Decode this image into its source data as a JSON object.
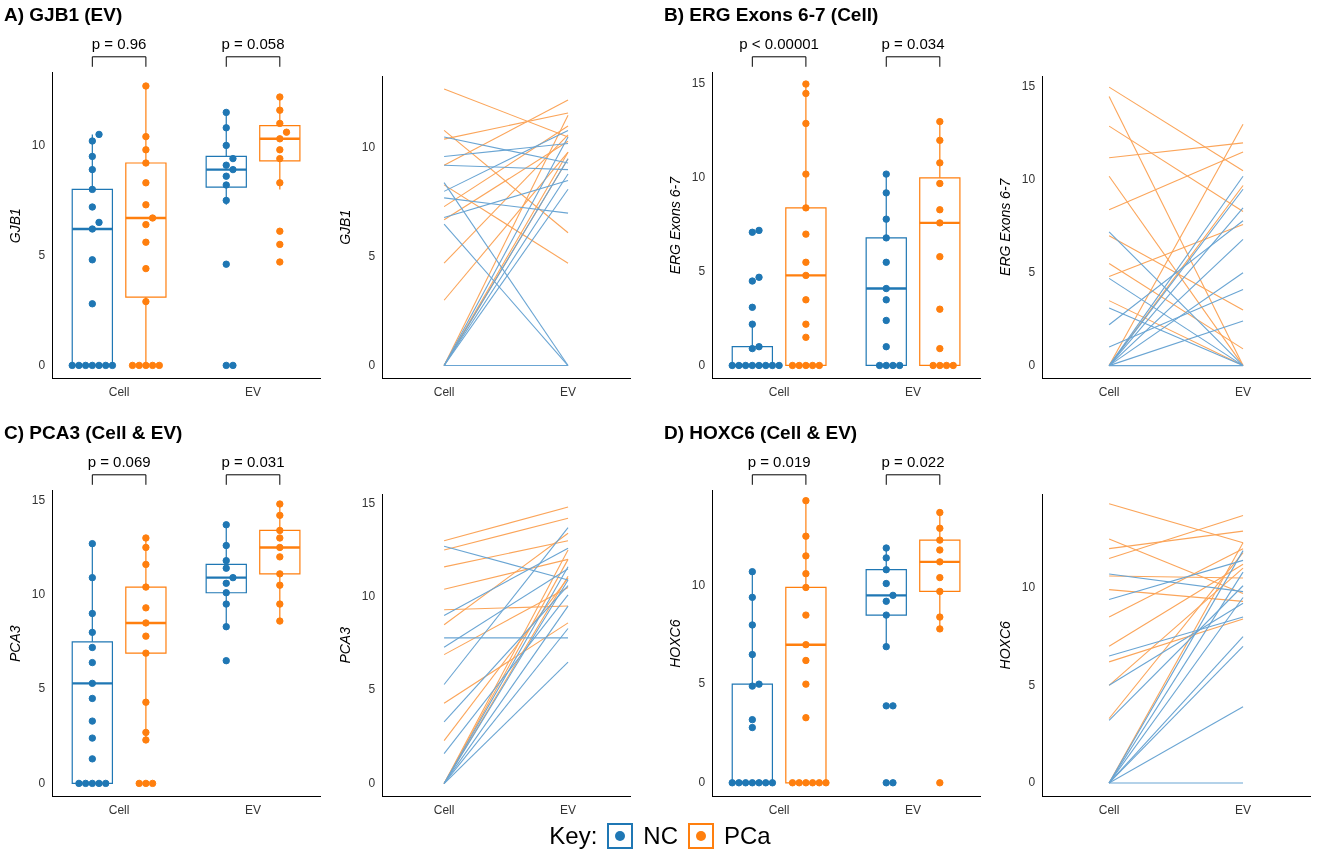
{
  "chart_data": [
    {
      "type": "box",
      "title": "A) GJB1 (EV)",
      "ylabel": "GJB1",
      "categories": [
        "Cell",
        "EV"
      ],
      "ylim": [
        -0.6,
        13.3
      ],
      "yticks": [
        0,
        5,
        10
      ],
      "marker": "circle",
      "annotations": [
        "p = 0.96",
        "p = 0.058"
      ],
      "series": [
        {
          "color": "#1f77b4",
          "boxes": [
            {
              "low": 0,
              "q1": 0,
              "median": 6.2,
              "q3": 8.0,
              "high": 10.5
            },
            {
              "low": 7.3,
              "q1": 8.1,
              "median": 8.9,
              "q3": 9.5,
              "high": 11.5
            }
          ]
        },
        {
          "color": "#ff7f0e",
          "boxes": [
            {
              "low": 0,
              "q1": 3.1,
              "median": 6.7,
              "q3": 9.2,
              "high": 12.7
            },
            {
              "low": 8.0,
              "q1": 9.3,
              "median": 10.3,
              "q3": 10.9,
              "high": 12.2
            }
          ]
        },
        {
          "type": "scatter",
          "color": "#1f77b4",
          "x": [
            "Cell",
            "Cell",
            "Cell",
            "Cell",
            "Cell",
            "Cell",
            "Cell",
            "Cell",
            "Cell",
            "Cell",
            "Cell",
            "Cell",
            "Cell",
            "Cell",
            "Cell",
            "Cell",
            "Cell",
            "EV",
            "EV",
            "EV",
            "EV",
            "EV",
            "EV",
            "EV",
            "EV",
            "EV",
            "EV",
            "EV",
            "EV"
          ],
          "values": [
            0,
            0,
            0,
            0,
            0,
            0,
            0,
            2.8,
            4.8,
            6.2,
            6.5,
            7.2,
            8.0,
            8.9,
            9.5,
            10.2,
            10.5,
            0,
            0,
            4.6,
            7.5,
            8.2,
            8.6,
            8.9,
            9.1,
            9.4,
            10.0,
            10.8,
            11.5
          ]
        },
        {
          "type": "scatter",
          "color": "#ff7f0e",
          "x": [
            "Cell",
            "Cell",
            "Cell",
            "Cell",
            "Cell",
            "Cell",
            "Cell",
            "Cell",
            "Cell",
            "Cell",
            "Cell",
            "Cell",
            "Cell",
            "Cell",
            "Cell",
            "Cell",
            "EV",
            "EV",
            "EV",
            "EV",
            "EV",
            "EV",
            "EV",
            "EV",
            "EV",
            "EV",
            "EV"
          ],
          "values": [
            0,
            0,
            0,
            0,
            0,
            2.9,
            4.4,
            5.6,
            6.4,
            6.7,
            7.3,
            8.3,
            9.2,
            9.8,
            10.4,
            12.7,
            4.7,
            5.5,
            6.1,
            8.3,
            9.4,
            9.8,
            10.3,
            10.6,
            11.0,
            11.6,
            12.2
          ]
        }
      ]
    },
    {
      "type": "line",
      "ylabel": "GJB1",
      "categories": [
        "Cell",
        "EV"
      ],
      "ylim": [
        -0.6,
        13.3
      ],
      "yticks": [
        0,
        5,
        10
      ],
      "marker": "none",
      "series": [
        {
          "color": "#6aa5d3",
          "values": [
            0,
            9.5
          ]
        },
        {
          "color": "#6aa5d3",
          "values": [
            0,
            8.8
          ]
        },
        {
          "color": "#6aa5d3",
          "values": [
            0,
            10.5
          ]
        },
        {
          "color": "#6aa5d3",
          "values": [
            6.5,
            0
          ]
        },
        {
          "color": "#6aa5d3",
          "values": [
            8.4,
            0
          ]
        },
        {
          "color": "#6aa5d3",
          "values": [
            9.2,
            9.0
          ]
        },
        {
          "color": "#6aa5d3",
          "values": [
            6.8,
            8.5
          ]
        },
        {
          "color": "#6aa5d3",
          "values": [
            10.5,
            9.3
          ]
        },
        {
          "color": "#6aa5d3",
          "values": [
            7.7,
            7.0
          ]
        },
        {
          "color": "#6aa5d3",
          "values": [
            0,
            0
          ]
        },
        {
          "color": "#6aa5d3",
          "values": [
            9.6,
            10.2
          ]
        },
        {
          "color": "#6aa5d3",
          "values": [
            8.0,
            10.8
          ]
        },
        {
          "color": "#6aa5d3",
          "values": [
            0,
            8.1
          ]
        },
        {
          "color": "#fba55a",
          "values": [
            12.7,
            10.5
          ]
        },
        {
          "color": "#fba55a",
          "values": [
            0,
            11.5
          ]
        },
        {
          "color": "#fba55a",
          "values": [
            0,
            9.5
          ]
        },
        {
          "color": "#fba55a",
          "values": [
            4.7,
            10.6
          ]
        },
        {
          "color": "#fba55a",
          "values": [
            9.2,
            12.2
          ]
        },
        {
          "color": "#fba55a",
          "values": [
            10.4,
            11.6
          ]
        },
        {
          "color": "#fba55a",
          "values": [
            6.7,
            10.3
          ]
        },
        {
          "color": "#fba55a",
          "values": [
            3.0,
            9.8
          ]
        },
        {
          "color": "#fba55a",
          "values": [
            8.3,
            4.7
          ]
        },
        {
          "color": "#fba55a",
          "values": [
            10.8,
            6.1
          ]
        },
        {
          "color": "#fba55a",
          "values": [
            7.3,
            11.0
          ]
        },
        {
          "color": "#fba55a",
          "values": [
            0,
            9.8
          ]
        }
      ]
    },
    {
      "type": "box",
      "title": "B) ERG Exons 6-7 (Cell)",
      "ylabel": "ERG Exons 6-7",
      "categories": [
        "Cell",
        "EV"
      ],
      "ylim": [
        -0.7,
        15.6
      ],
      "yticks": [
        0,
        5,
        10,
        15
      ],
      "marker": "circle",
      "annotations": [
        "p < 0.00001",
        "p = 0.034"
      ],
      "series": [
        {
          "color": "#1f77b4",
          "boxes": [
            {
              "low": 0,
              "q1": 0,
              "median": 0,
              "q3": 1.0,
              "high": 2.2
            },
            {
              "low": 0,
              "q1": 0,
              "median": 4.1,
              "q3": 6.8,
              "high": 10.2
            }
          ]
        },
        {
          "color": "#ff7f0e",
          "boxes": [
            {
              "low": 0,
              "q1": 0,
              "median": 4.8,
              "q3": 8.4,
              "high": 15.0
            },
            {
              "low": 0,
              "q1": 0,
              "median": 7.6,
              "q3": 10.0,
              "high": 13.0
            }
          ]
        },
        {
          "type": "scatter",
          "color": "#1f77b4",
          "x": [
            "Cell",
            "Cell",
            "Cell",
            "Cell",
            "Cell",
            "Cell",
            "Cell",
            "Cell",
            "Cell",
            "Cell",
            "Cell",
            "Cell",
            "Cell",
            "Cell",
            "Cell",
            "Cell",
            "EV",
            "EV",
            "EV",
            "EV",
            "EV",
            "EV",
            "EV",
            "EV",
            "EV",
            "EV",
            "EV",
            "EV",
            "EV"
          ],
          "values": [
            0,
            0,
            0,
            0,
            0,
            0,
            0,
            0,
            0.9,
            1.0,
            2.2,
            3.1,
            4.5,
            4.7,
            7.1,
            7.2,
            0,
            0,
            0,
            0,
            1.0,
            2.4,
            3.5,
            4.1,
            5.5,
            6.8,
            7.8,
            9.2,
            10.2
          ]
        },
        {
          "type": "scatter",
          "color": "#ff7f0e",
          "x": [
            "Cell",
            "Cell",
            "Cell",
            "Cell",
            "Cell",
            "Cell",
            "Cell",
            "Cell",
            "Cell",
            "Cell",
            "Cell",
            "Cell",
            "Cell",
            "Cell",
            "Cell",
            "Cell",
            "EV",
            "EV",
            "EV",
            "EV",
            "EV",
            "EV",
            "EV",
            "EV",
            "EV",
            "EV",
            "EV",
            "EV",
            "EV"
          ],
          "values": [
            0,
            0,
            0,
            0,
            0,
            1.5,
            2.2,
            3.5,
            4.8,
            5.5,
            7.0,
            8.4,
            10.2,
            12.9,
            14.5,
            15.0,
            0,
            0,
            0,
            0,
            0.9,
            3.0,
            5.8,
            7.6,
            8.3,
            9.7,
            10.8,
            12.0,
            13.0
          ]
        }
      ]
    },
    {
      "type": "line",
      "ylabel": "ERG Exons 6-7",
      "categories": [
        "Cell",
        "EV"
      ],
      "ylim": [
        -0.7,
        15.6
      ],
      "yticks": [
        0,
        5,
        10,
        15
      ],
      "marker": "none",
      "series": [
        {
          "color": "#6aa5d3",
          "values": [
            0,
            9.5
          ]
        },
        {
          "color": "#6aa5d3",
          "values": [
            0,
            8.5
          ]
        },
        {
          "color": "#6aa5d3",
          "values": [
            0,
            6.8
          ]
        },
        {
          "color": "#6aa5d3",
          "values": [
            0,
            5.0
          ]
        },
        {
          "color": "#6aa5d3",
          "values": [
            7.2,
            0
          ]
        },
        {
          "color": "#6aa5d3",
          "values": [
            4.7,
            0
          ]
        },
        {
          "color": "#6aa5d3",
          "values": [
            3.1,
            0
          ]
        },
        {
          "color": "#6aa5d3",
          "values": [
            0,
            0
          ]
        },
        {
          "color": "#6aa5d3",
          "values": [
            1.0,
            4.1
          ]
        },
        {
          "color": "#6aa5d3",
          "values": [
            2.2,
            7.8
          ]
        },
        {
          "color": "#6aa5d3",
          "values": [
            0,
            2.4
          ]
        },
        {
          "color": "#6aa5d3",
          "values": [
            0,
            10.2
          ]
        },
        {
          "color": "#fba55a",
          "values": [
            15.0,
            10.5
          ]
        },
        {
          "color": "#fba55a",
          "values": [
            14.5,
            0
          ]
        },
        {
          "color": "#fba55a",
          "values": [
            12.9,
            8.3
          ]
        },
        {
          "color": "#fba55a",
          "values": [
            10.2,
            0
          ]
        },
        {
          "color": "#fba55a",
          "values": [
            8.4,
            11.5
          ]
        },
        {
          "color": "#fba55a",
          "values": [
            0,
            13.0
          ]
        },
        {
          "color": "#fba55a",
          "values": [
            0,
            9.7
          ]
        },
        {
          "color": "#fba55a",
          "values": [
            5.5,
            0.9
          ]
        },
        {
          "color": "#fba55a",
          "values": [
            4.8,
            7.6
          ]
        },
        {
          "color": "#fba55a",
          "values": [
            11.2,
            12.0
          ]
        },
        {
          "color": "#fba55a",
          "values": [
            3.5,
            0
          ]
        },
        {
          "color": "#fba55a",
          "values": [
            7.0,
            3.0
          ]
        }
      ]
    },
    {
      "type": "box",
      "title": "C) PCA3 (Cell & EV)",
      "ylabel": "PCA3",
      "categories": [
        "Cell",
        "EV"
      ],
      "ylim": [
        -0.7,
        15.5
      ],
      "yticks": [
        0,
        5,
        10,
        15
      ],
      "marker": "circle",
      "annotations": [
        "p = 0.069",
        "p = 0.031"
      ],
      "series": [
        {
          "color": "#1f77b4",
          "boxes": [
            {
              "low": 0,
              "q1": 0,
              "median": 5.3,
              "q3": 7.5,
              "high": 12.7
            },
            {
              "low": 8.3,
              "q1": 10.1,
              "median": 10.9,
              "q3": 11.6,
              "high": 13.7
            }
          ]
        },
        {
          "color": "#ff7f0e",
          "boxes": [
            {
              "low": 2.3,
              "q1": 6.9,
              "median": 8.5,
              "q3": 10.4,
              "high": 13.0
            },
            {
              "low": 8.6,
              "q1": 11.1,
              "median": 12.5,
              "q3": 13.4,
              "high": 14.8
            }
          ]
        },
        {
          "type": "scatter",
          "color": "#1f77b4",
          "x": [
            "Cell",
            "Cell",
            "Cell",
            "Cell",
            "Cell",
            "Cell",
            "Cell",
            "Cell",
            "Cell",
            "Cell",
            "Cell",
            "Cell",
            "Cell",
            "Cell",
            "Cell",
            "Cell",
            "EV",
            "EV",
            "EV",
            "EV",
            "EV",
            "EV",
            "EV",
            "EV",
            "EV",
            "EV"
          ],
          "values": [
            0,
            0,
            0,
            0,
            0,
            1.3,
            2.4,
            3.3,
            4.5,
            5.3,
            6.4,
            7.2,
            8.0,
            9.0,
            10.9,
            12.7,
            6.5,
            8.3,
            9.5,
            10.1,
            10.6,
            10.9,
            11.4,
            11.8,
            12.6,
            13.7
          ]
        },
        {
          "type": "scatter",
          "color": "#ff7f0e",
          "x": [
            "Cell",
            "Cell",
            "Cell",
            "Cell",
            "Cell",
            "Cell",
            "Cell",
            "Cell",
            "Cell",
            "Cell",
            "Cell",
            "Cell",
            "Cell",
            "Cell",
            "EV",
            "EV",
            "EV",
            "EV",
            "EV",
            "EV",
            "EV",
            "EV",
            "EV",
            "EV"
          ],
          "values": [
            0,
            0,
            0,
            2.3,
            2.7,
            4.3,
            6.9,
            7.8,
            8.5,
            9.3,
            10.4,
            11.6,
            12.5,
            13.0,
            8.6,
            9.5,
            10.5,
            11.1,
            12.0,
            12.5,
            13.0,
            13.4,
            14.2,
            14.8
          ]
        }
      ]
    },
    {
      "type": "line",
      "ylabel": "PCA3",
      "categories": [
        "Cell",
        "EV"
      ],
      "ylim": [
        -0.7,
        15.5
      ],
      "yticks": [
        0,
        5,
        10,
        15
      ],
      "marker": "none",
      "series": [
        {
          "color": "#6aa5d3",
          "values": [
            0,
            10.9
          ]
        },
        {
          "color": "#6aa5d3",
          "values": [
            0,
            6.5
          ]
        },
        {
          "color": "#6aa5d3",
          "values": [
            0,
            11.6
          ]
        },
        {
          "color": "#6aa5d3",
          "values": [
            0,
            9.5
          ]
        },
        {
          "color": "#6aa5d3",
          "values": [
            1.6,
            10.1
          ]
        },
        {
          "color": "#6aa5d3",
          "values": [
            7.8,
            7.8
          ]
        },
        {
          "color": "#6aa5d3",
          "values": [
            7.3,
            11.5
          ]
        },
        {
          "color": "#6aa5d3",
          "values": [
            9.0,
            12.6
          ]
        },
        {
          "color": "#6aa5d3",
          "values": [
            12.7,
            10.9
          ]
        },
        {
          "color": "#6aa5d3",
          "values": [
            5.3,
            13.7
          ]
        },
        {
          "color": "#6aa5d3",
          "values": [
            3.3,
            10.6
          ]
        },
        {
          "color": "#6aa5d3",
          "values": [
            0,
            8.3
          ]
        },
        {
          "color": "#fba55a",
          "values": [
            13.0,
            14.8
          ]
        },
        {
          "color": "#fba55a",
          "values": [
            12.5,
            14.2
          ]
        },
        {
          "color": "#fba55a",
          "values": [
            11.6,
            13.0
          ]
        },
        {
          "color": "#fba55a",
          "values": [
            0,
            11.1
          ]
        },
        {
          "color": "#fba55a",
          "values": [
            0,
            12.5
          ]
        },
        {
          "color": "#fba55a",
          "values": [
            2.3,
            11.0
          ]
        },
        {
          "color": "#fba55a",
          "values": [
            8.5,
            13.4
          ]
        },
        {
          "color": "#fba55a",
          "values": [
            10.4,
            12.0
          ]
        },
        {
          "color": "#fba55a",
          "values": [
            6.9,
            10.5
          ]
        },
        {
          "color": "#fba55a",
          "values": [
            4.3,
            8.6
          ]
        },
        {
          "color": "#fba55a",
          "values": [
            9.3,
            9.5
          ]
        },
        {
          "color": "#fba55a",
          "values": [
            0,
            12.0
          ]
        }
      ]
    },
    {
      "type": "box",
      "title": "D) HOXC6 (Cell & EV)",
      "ylabel": "HOXC6",
      "categories": [
        "Cell",
        "EV"
      ],
      "ylim": [
        -0.7,
        14.8
      ],
      "yticks": [
        0,
        5,
        10
      ],
      "marker": "circle",
      "annotations": [
        "p = 0.019",
        "p = 0.022"
      ],
      "legend": "bottom",
      "legend_title": "Key:",
      "series": [
        {
          "name": "NC",
          "color": "#1f77b4",
          "boxes": [
            {
              "low": 0,
              "q1": 0,
              "median": 0,
              "q3": 5.0,
              "high": 10.7
            },
            {
              "low": 6.9,
              "q1": 8.5,
              "median": 9.5,
              "q3": 10.8,
              "high": 11.9
            }
          ]
        },
        {
          "name": "PCa",
          "color": "#ff7f0e",
          "boxes": [
            {
              "low": 0,
              "q1": 0,
              "median": 7.0,
              "q3": 9.9,
              "high": 14.3
            },
            {
              "low": 7.8,
              "q1": 9.7,
              "median": 11.2,
              "q3": 12.3,
              "high": 13.7
            }
          ]
        },
        {
          "type": "scatter",
          "color": "#1f77b4",
          "x": [
            "Cell",
            "Cell",
            "Cell",
            "Cell",
            "Cell",
            "Cell",
            "Cell",
            "Cell",
            "Cell",
            "Cell",
            "Cell",
            "Cell",
            "Cell",
            "Cell",
            "Cell",
            "EV",
            "EV",
            "EV",
            "EV",
            "EV",
            "EV",
            "EV",
            "EV",
            "EV",
            "EV",
            "EV",
            "EV"
          ],
          "values": [
            0,
            0,
            0,
            0,
            0,
            0,
            0,
            2.8,
            3.2,
            4.9,
            5.0,
            6.5,
            8.0,
            9.4,
            10.7,
            0,
            0,
            3.9,
            3.9,
            6.9,
            8.5,
            9.2,
            9.5,
            10.1,
            10.8,
            11.4,
            11.9
          ]
        },
        {
          "type": "scatter",
          "color": "#ff7f0e",
          "x": [
            "Cell",
            "Cell",
            "Cell",
            "Cell",
            "Cell",
            "Cell",
            "Cell",
            "Cell",
            "Cell",
            "Cell",
            "Cell",
            "Cell",
            "Cell",
            "Cell",
            "Cell",
            "Cell",
            "EV",
            "EV",
            "EV",
            "EV",
            "EV",
            "EV",
            "EV",
            "EV",
            "EV",
            "EV"
          ],
          "values": [
            0,
            0,
            0,
            0,
            0,
            0,
            3.3,
            5.0,
            6.2,
            7.0,
            8.5,
            9.9,
            10.6,
            11.5,
            12.5,
            14.3,
            0,
            7.8,
            8.4,
            9.7,
            10.4,
            11.2,
            11.8,
            12.3,
            12.9,
            13.7
          ]
        }
      ]
    },
    {
      "type": "line",
      "ylabel": "HOXC6",
      "categories": [
        "Cell",
        "EV"
      ],
      "ylim": [
        -0.7,
        14.8
      ],
      "yticks": [
        0,
        5,
        10
      ],
      "marker": "none",
      "series": [
        {
          "color": "#6aa5d3",
          "values": [
            0,
            11.9
          ]
        },
        {
          "color": "#6aa5d3",
          "values": [
            0,
            10.8
          ]
        },
        {
          "color": "#6aa5d3",
          "values": [
            0,
            9.5
          ]
        },
        {
          "color": "#6aa5d3",
          "values": [
            0,
            0
          ]
        },
        {
          "color": "#6aa5d3",
          "values": [
            0,
            3.9
          ]
        },
        {
          "color": "#6aa5d3",
          "values": [
            0,
            7.5
          ]
        },
        {
          "color": "#6aa5d3",
          "values": [
            5.0,
            9.2
          ]
        },
        {
          "color": "#6aa5d3",
          "values": [
            6.5,
            8.5
          ]
        },
        {
          "color": "#6aa5d3",
          "values": [
            9.4,
            11.4
          ]
        },
        {
          "color": "#6aa5d3",
          "values": [
            3.2,
            10.1
          ]
        },
        {
          "color": "#6aa5d3",
          "values": [
            10.7,
            9.8
          ]
        },
        {
          "color": "#6aa5d3",
          "values": [
            0,
            7.0
          ]
        },
        {
          "color": "#fba55a",
          "values": [
            14.3,
            12.3
          ]
        },
        {
          "color": "#fba55a",
          "values": [
            12.0,
            12.9
          ]
        },
        {
          "color": "#fba55a",
          "values": [
            11.5,
            13.7
          ]
        },
        {
          "color": "#fba55a",
          "values": [
            10.6,
            10.5
          ]
        },
        {
          "color": "#fba55a",
          "values": [
            9.9,
            9.3
          ]
        },
        {
          "color": "#fba55a",
          "values": [
            7.0,
            11.2
          ]
        },
        {
          "color": "#fba55a",
          "values": [
            3.3,
            11.8
          ]
        },
        {
          "color": "#fba55a",
          "values": [
            0,
            12.3
          ]
        },
        {
          "color": "#fba55a",
          "values": [
            6.2,
            8.4
          ]
        },
        {
          "color": "#fba55a",
          "values": [
            5.0,
            11.0
          ]
        },
        {
          "color": "#fba55a",
          "values": [
            12.5,
            9.7
          ]
        },
        {
          "color": "#fba55a",
          "values": [
            8.5,
            12.0
          ]
        }
      ]
    }
  ]
}
